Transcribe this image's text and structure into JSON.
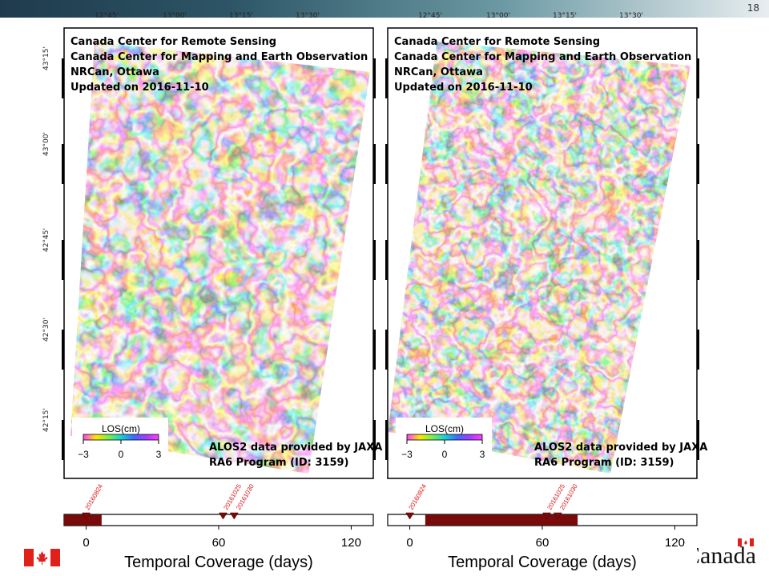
{
  "page_number": "18",
  "footer_wordmark": "Canada",
  "panels": [
    {
      "longitude_labels": [
        "12°45'",
        "13°00'",
        "13°15'",
        "13°30'"
      ],
      "latitude_labels": [
        "43°15'",
        "43°00'",
        "42°45'",
        "42°30'",
        "42°15'"
      ],
      "credits": [
        "Canada Center for Remote Sensing",
        "Canada Center for Mapping and Earth Observation",
        "NRCan, Ottawa",
        "Updated on 2016-11-10"
      ],
      "colorbar": {
        "label": "LOS(cm)",
        "lim": [
          -3,
          3
        ],
        "ticks": [
          {
            "value": -3,
            "label": "−3"
          },
          0,
          3
        ]
      },
      "provider": [
        "ALOS2 data provided by JAXA",
        "RA6 Program (ID: 3159)"
      ],
      "timeline": {
        "xlim": [
          -10,
          130
        ],
        "xticks": [
          0,
          60,
          120
        ],
        "xlabel": "Temporal Coverage (days)",
        "coverage": [
          -10,
          7
        ],
        "color": "#7b0a0a",
        "dates": [
          {
            "label": "20160824",
            "day": 0
          },
          {
            "label": "20161025",
            "day": 62
          },
          {
            "label": "20161030",
            "day": 67
          }
        ]
      }
    },
    {
      "longitude_labels": [
        "12°45'",
        "13°00'",
        "13°15'",
        "13°30'"
      ],
      "credits": [
        "Canada Center for Remote Sensing",
        "Canada Center for Mapping and Earth Observation",
        "NRCan, Ottawa",
        "Updated on 2016-11-10"
      ],
      "colorbar": {
        "label": "LOS(cm)",
        "lim": [
          -3,
          3
        ],
        "ticks": [
          {
            "value": -3,
            "label": "−3"
          },
          0,
          3
        ]
      },
      "provider": [
        "ALOS2 data provided by JAXA",
        "RA6 Program (ID: 3159)"
      ],
      "timeline": {
        "xlim": [
          -10,
          130
        ],
        "xticks": [
          0,
          60,
          120
        ],
        "xlabel": "Temporal Coverage (days)",
        "coverage": [
          7,
          76
        ],
        "color": "#7b0a0a",
        "dates": [
          {
            "label": "20160824",
            "day": 0
          },
          {
            "label": "20161025",
            "day": 62
          },
          {
            "label": "20161030",
            "day": 67
          }
        ]
      }
    }
  ]
}
